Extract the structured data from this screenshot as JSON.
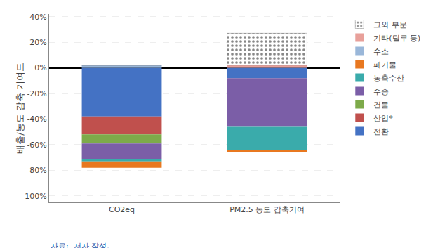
{
  "chart_data": {
    "type": "bar",
    "stacked": true,
    "categories": [
      "CO2eq",
      "PM2.5 농도 감축기여"
    ],
    "ylabel": "배출/농도 감축 기여도",
    "ylim": [
      -105,
      42
    ],
    "yticks": [
      {
        "value": -100,
        "label": "-100%"
      },
      {
        "value": -80,
        "label": "-80%"
      },
      {
        "value": -60,
        "label": "-60%"
      },
      {
        "value": -40,
        "label": "-40%"
      },
      {
        "value": -20,
        "label": "-20%"
      },
      {
        "value": 0,
        "label": "0%"
      },
      {
        "value": 20,
        "label": "20%"
      },
      {
        "value": 40,
        "label": "40%"
      }
    ],
    "grid": true,
    "legend": "right",
    "annotations": [
      "자료:  저자 작성."
    ],
    "series": [
      {
        "name": "전환",
        "color": "#4472c4",
        "values": [
          -38.0,
          -8.0
        ]
      },
      {
        "name": "산업*",
        "color": "#c0504d",
        "values": [
          -14.0,
          0.0
        ]
      },
      {
        "name": "건물",
        "color": "#7daa4a",
        "values": [
          -7.0,
          0.0
        ]
      },
      {
        "name": "수송",
        "color": "#7b5ea7",
        "values": [
          -12.0,
          -38.0
        ]
      },
      {
        "name": "농축수산",
        "color": "#3aabab",
        "values": [
          -2.0,
          -18.0
        ]
      },
      {
        "name": "폐기물",
        "color": "#e87820",
        "values": [
          -5.0,
          -2.0
        ]
      },
      {
        "name": "수소",
        "color": "#9ab7d9",
        "values": [
          2.0,
          0.0
        ]
      },
      {
        "name": "기타(탈루 등)",
        "color": "#e8a09a",
        "values": [
          0.0,
          2.0
        ]
      },
      {
        "name": "그외 부문",
        "color": "white",
        "marker": "dots",
        "values": [
          0.0,
          25.0
        ]
      }
    ]
  }
}
